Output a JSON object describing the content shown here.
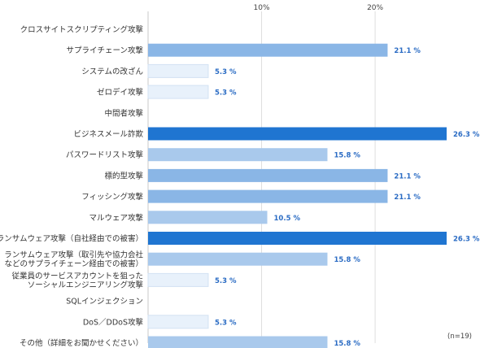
{
  "chart_data": {
    "type": "bar",
    "orientation": "horizontal",
    "categories": [
      [
        "クロスサイトスクリプティング攻撃"
      ],
      [
        "サプライチェーン攻撃"
      ],
      [
        "システムの改ざん"
      ],
      [
        "ゼロデイ攻撃"
      ],
      [
        "中間者攻撃"
      ],
      [
        "ビジネスメール詐欺"
      ],
      [
        "パスワードリスト攻撃"
      ],
      [
        "標的型攻撃"
      ],
      [
        "フィッシング攻撃"
      ],
      [
        "マルウェア攻撃"
      ],
      [
        "ランサムウェア攻撃（自社経由での被害）"
      ],
      [
        "ランサムウェア攻撃（取引先や協力会社",
        "などのサプライチェーン経由での被害）"
      ],
      [
        "従業員のサービスアカウントを狙った",
        "ソーシャルエンジニアリング攻撃"
      ],
      [
        "SQLインジェクション"
      ],
      [
        "DoS／DDoS攻撃"
      ],
      [
        "その他（詳細をお聞かせください）"
      ]
    ],
    "values": [
      0,
      21.1,
      5.3,
      5.3,
      0,
      26.3,
      15.8,
      21.1,
      21.1,
      10.5,
      26.3,
      15.8,
      5.3,
      0,
      5.3,
      15.8
    ],
    "value_labels": [
      "",
      "21.1 %",
      "5.3 %",
      "5.3 %",
      "",
      "26.3 %",
      "15.8 %",
      "21.1 %",
      "21.1 %",
      "10.5 %",
      "26.3 %",
      "15.8 %",
      "5.3 %",
      "",
      "5.3 %",
      "15.8 %"
    ],
    "xlim": [
      0,
      26.3
    ],
    "xticks": [
      10,
      20
    ],
    "xtick_labels": [
      "10%",
      "20%"
    ],
    "grid": true,
    "note": "(n=19)",
    "color_scale": [
      "#e8f1fb",
      "#a9c9ec",
      "#8ab6e6",
      "#1f75d1"
    ]
  }
}
